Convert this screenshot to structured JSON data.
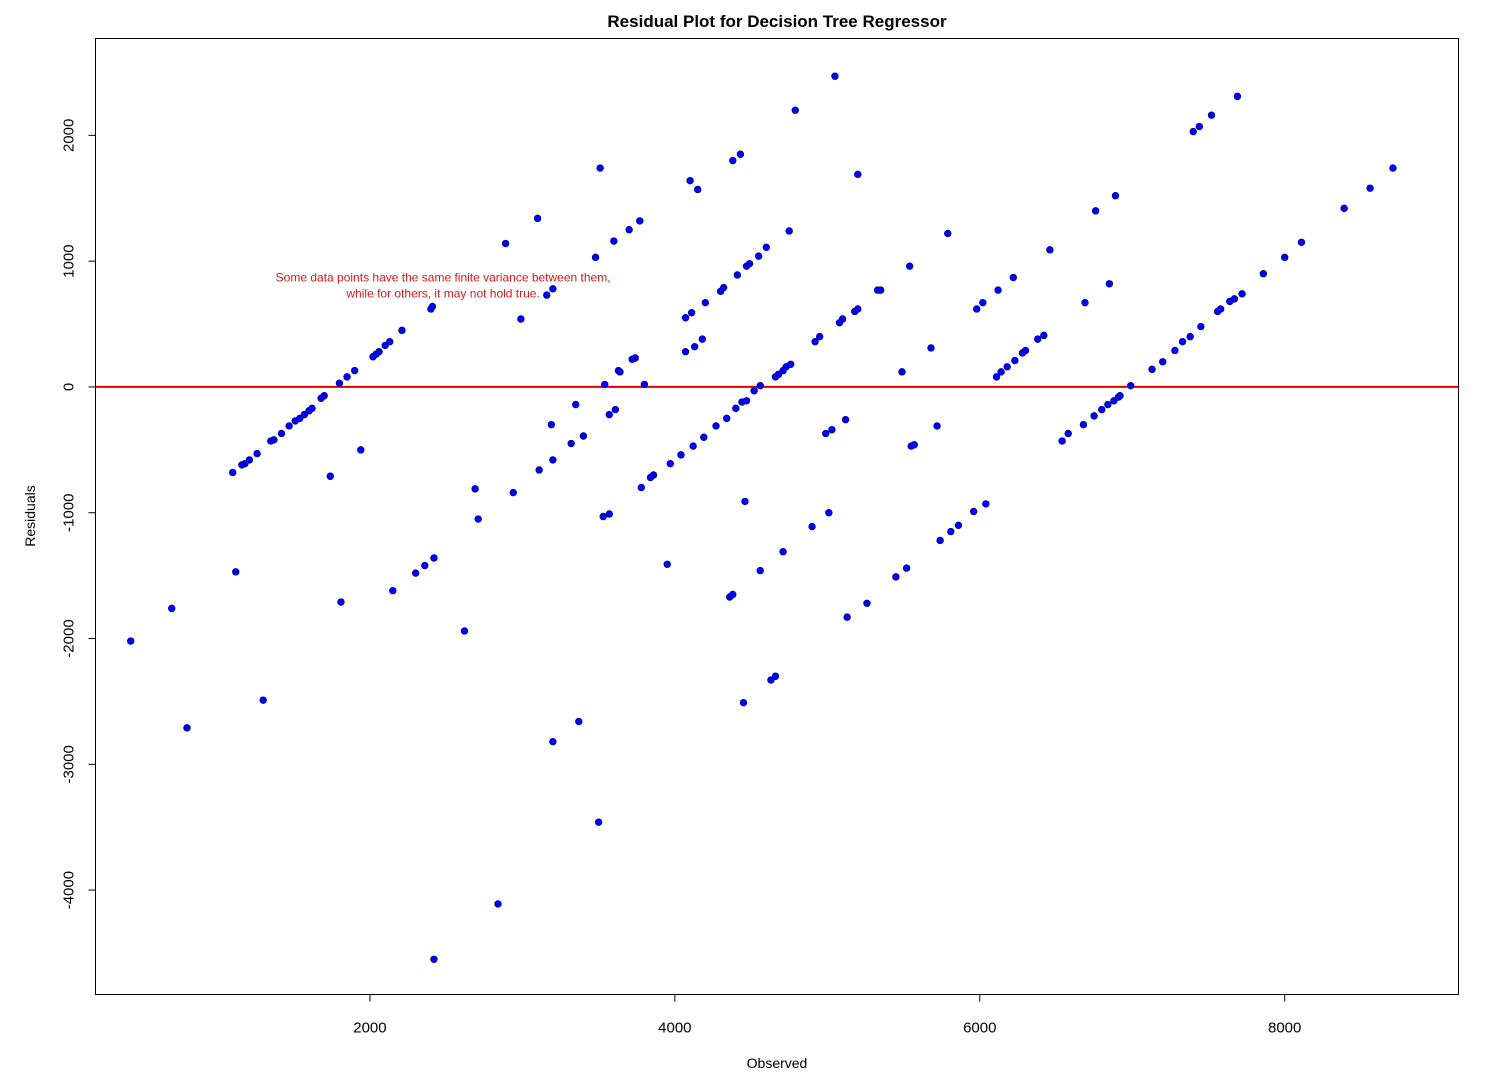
{
  "colors": {
    "points": "#0000ff",
    "point_edge": "#00008b",
    "reference_line": "#e00000",
    "annotation": "#d11a1a",
    "frame": "#000000"
  },
  "chart_data": {
    "type": "scatter",
    "title": "Residual Plot for Decision Tree Regressor",
    "xlabel": "Observed",
    "ylabel": "Residuals",
    "xlim": [
      200,
      9140
    ],
    "ylim": [
      -4830,
      2770
    ],
    "xticks": [
      2000,
      4000,
      6000,
      8000
    ],
    "yticks": [
      -4000,
      -3000,
      -2000,
      -1000,
      0,
      1000,
      2000
    ],
    "grid": false,
    "reference_line": {
      "y": 0
    },
    "annotation": {
      "lines": [
        "Some data points have the same finite variance between them,",
        "while for others, it may not hold true."
      ],
      "x": 2480,
      "y": 790
    },
    "points": [
      [
        431,
        -2020
      ],
      [
        700,
        -1760
      ],
      [
        800,
        -2710
      ],
      [
        1100,
        -680
      ],
      [
        1120,
        -1470
      ],
      [
        1160,
        -620
      ],
      [
        1180,
        -610
      ],
      [
        1210,
        -580
      ],
      [
        1260,
        -530
      ],
      [
        1300,
        -2490
      ],
      [
        1350,
        -430
      ],
      [
        1370,
        -420
      ],
      [
        1420,
        -370
      ],
      [
        1470,
        -310
      ],
      [
        1510,
        -270
      ],
      [
        1540,
        -250
      ],
      [
        1570,
        -220
      ],
      [
        1600,
        -190
      ],
      [
        1620,
        -170
      ],
      [
        1680,
        -90
      ],
      [
        1700,
        -70
      ],
      [
        1740,
        -710
      ],
      [
        1800,
        30
      ],
      [
        1810,
        -1710
      ],
      [
        1850,
        80
      ],
      [
        1900,
        130
      ],
      [
        1940,
        -500
      ],
      [
        2020,
        240
      ],
      [
        2040,
        260
      ],
      [
        2060,
        280
      ],
      [
        2100,
        330
      ],
      [
        2130,
        360
      ],
      [
        2150,
        -1620
      ],
      [
        2210,
        450
      ],
      [
        2300,
        -1480
      ],
      [
        2360,
        -1420
      ],
      [
        2400,
        620
      ],
      [
        2410,
        640
      ],
      [
        2420,
        -1360
      ],
      [
        2420,
        -4550
      ],
      [
        2620,
        -1940
      ],
      [
        2690,
        -810
      ],
      [
        2710,
        -1050
      ],
      [
        2840,
        -4110
      ],
      [
        2890,
        1140
      ],
      [
        2940,
        -840
      ],
      [
        2990,
        540
      ],
      [
        3100,
        1340
      ],
      [
        3110,
        -660
      ],
      [
        3190,
        -300
      ],
      [
        3200,
        -580
      ],
      [
        3200,
        -2820
      ],
      [
        3200,
        780
      ],
      [
        3160,
        730
      ],
      [
        3320,
        -450
      ],
      [
        3350,
        -140
      ],
      [
        3370,
        -2660
      ],
      [
        3400,
        -390
      ],
      [
        3480,
        1030
      ],
      [
        3500,
        -3460
      ],
      [
        3510,
        1740
      ],
      [
        3530,
        -1030
      ],
      [
        3540,
        20
      ],
      [
        3570,
        -1010
      ],
      [
        3570,
        -220
      ],
      [
        3600,
        1160
      ],
      [
        3610,
        -180
      ],
      [
        3630,
        130
      ],
      [
        3640,
        120
      ],
      [
        3700,
        1250
      ],
      [
        3720,
        220
      ],
      [
        3740,
        230
      ],
      [
        3770,
        1320
      ],
      [
        3780,
        -800
      ],
      [
        3800,
        20
      ],
      [
        3840,
        -720
      ],
      [
        3860,
        -700
      ],
      [
        3950,
        -1410
      ],
      [
        3970,
        -610
      ],
      [
        4040,
        -540
      ],
      [
        4070,
        550
      ],
      [
        4070,
        280
      ],
      [
        4100,
        1640
      ],
      [
        4110,
        590
      ],
      [
        4120,
        -470
      ],
      [
        4130,
        320
      ],
      [
        4150,
        1570
      ],
      [
        4180,
        380
      ],
      [
        4190,
        -400
      ],
      [
        4200,
        670
      ],
      [
        4270,
        -310
      ],
      [
        4300,
        760
      ],
      [
        4320,
        790
      ],
      [
        4340,
        -250
      ],
      [
        4360,
        -1670
      ],
      [
        4380,
        -1650
      ],
      [
        4380,
        1800
      ],
      [
        4400,
        -170
      ],
      [
        4410,
        890
      ],
      [
        4430,
        1850
      ],
      [
        4440,
        -120
      ],
      [
        4450,
        -2510
      ],
      [
        4460,
        -910
      ],
      [
        4470,
        -110
      ],
      [
        4470,
        960
      ],
      [
        4490,
        980
      ],
      [
        4520,
        -30
      ],
      [
        4550,
        1040
      ],
      [
        4560,
        -1460
      ],
      [
        4560,
        10
      ],
      [
        4600,
        1110
      ],
      [
        4630,
        -2330
      ],
      [
        4660,
        -2300
      ],
      [
        4660,
        80
      ],
      [
        4680,
        100
      ],
      [
        4710,
        -1310
      ],
      [
        4710,
        130
      ],
      [
        4730,
        160
      ],
      [
        4750,
        1240
      ],
      [
        4760,
        180
      ],
      [
        4790,
        2200
      ],
      [
        4900,
        -1110
      ],
      [
        4920,
        360
      ],
      [
        4950,
        400
      ],
      [
        4990,
        -370
      ],
      [
        5010,
        -1000
      ],
      [
        5030,
        -340
      ],
      [
        5050,
        2470
      ],
      [
        5080,
        510
      ],
      [
        5100,
        540
      ],
      [
        5120,
        -260
      ],
      [
        5130,
        -1830
      ],
      [
        5180,
        600
      ],
      [
        5200,
        620
      ],
      [
        5200,
        1690
      ],
      [
        5260,
        -1720
      ],
      [
        5330,
        770
      ],
      [
        5350,
        770
      ],
      [
        5450,
        -1510
      ],
      [
        5490,
        120
      ],
      [
        5520,
        -1440
      ],
      [
        5540,
        960
      ],
      [
        5550,
        -470
      ],
      [
        5570,
        -460
      ],
      [
        5680,
        310
      ],
      [
        5720,
        -310
      ],
      [
        5740,
        -1220
      ],
      [
        5790,
        1220
      ],
      [
        5810,
        -1150
      ],
      [
        5860,
        -1100
      ],
      [
        5960,
        -990
      ],
      [
        5980,
        620
      ],
      [
        6020,
        670
      ],
      [
        6040,
        -930
      ],
      [
        6110,
        80
      ],
      [
        6120,
        770
      ],
      [
        6140,
        120
      ],
      [
        6180,
        160
      ],
      [
        6220,
        870
      ],
      [
        6230,
        210
      ],
      [
        6280,
        270
      ],
      [
        6300,
        290
      ],
      [
        6380,
        380
      ],
      [
        6420,
        410
      ],
      [
        6460,
        1090
      ],
      [
        6540,
        -430
      ],
      [
        6580,
        -370
      ],
      [
        6680,
        -300
      ],
      [
        6690,
        670
      ],
      [
        6750,
        -230
      ],
      [
        6760,
        1400
      ],
      [
        6800,
        -180
      ],
      [
        6840,
        -140
      ],
      [
        6850,
        820
      ],
      [
        6880,
        -110
      ],
      [
        6890,
        1520
      ],
      [
        6910,
        -80
      ],
      [
        6920,
        -70
      ],
      [
        6990,
        10
      ],
      [
        7130,
        140
      ],
      [
        7200,
        200
      ],
      [
        7280,
        290
      ],
      [
        7330,
        360
      ],
      [
        7380,
        400
      ],
      [
        7400,
        2030
      ],
      [
        7440,
        2070
      ],
      [
        7450,
        480
      ],
      [
        7520,
        2160
      ],
      [
        7560,
        600
      ],
      [
        7580,
        620
      ],
      [
        7640,
        680
      ],
      [
        7670,
        700
      ],
      [
        7690,
        2310
      ],
      [
        7720,
        740
      ],
      [
        7860,
        900
      ],
      [
        8000,
        1030
      ],
      [
        8110,
        1150
      ],
      [
        8390,
        1420
      ],
      [
        8560,
        1580
      ],
      [
        8710,
        1740
      ]
    ]
  }
}
